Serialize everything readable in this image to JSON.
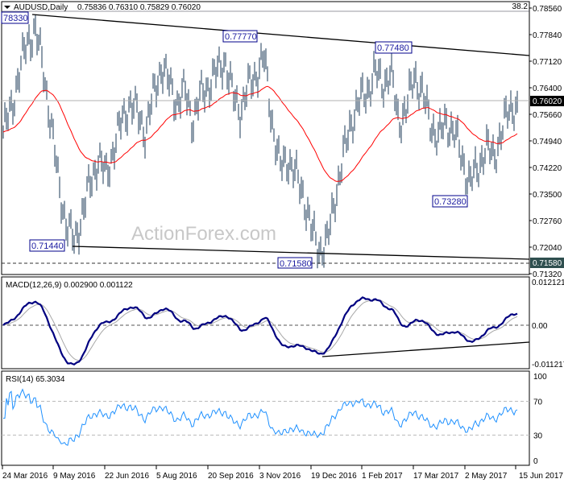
{
  "header": {
    "symbol": "AUDUSD,Daily",
    "ohlc": "0.75836 0.76310 0.75829 0.76020",
    "fib_label": "38.2",
    "watermark": "ActionForex.com"
  },
  "colors": {
    "bars": "#1b3a57",
    "moving_average": "#ff0000",
    "macd_main": "#000080",
    "macd_signal": "#a8a8a8",
    "rsi": "#1e90ff",
    "label_border": "#00008b"
  },
  "chart_data": [
    {
      "type": "bar",
      "subtype": "ohlc",
      "title": "AUDUSD,Daily",
      "x_range": [
        "24 Mar 2016",
        "15 Jun 2017"
      ],
      "ylim": [
        0.7132,
        0.7856
      ],
      "current_price": "0.76020",
      "weekly_closes_approx": [
        0.752,
        0.758,
        0.768,
        0.776,
        0.78,
        0.77,
        0.755,
        0.738,
        0.727,
        0.722,
        0.73,
        0.738,
        0.745,
        0.74,
        0.748,
        0.755,
        0.76,
        0.757,
        0.752,
        0.762,
        0.77,
        0.765,
        0.76,
        0.763,
        0.755,
        0.762,
        0.765,
        0.768,
        0.772,
        0.762,
        0.758,
        0.764,
        0.768,
        0.772,
        0.755,
        0.742,
        0.745,
        0.74,
        0.735,
        0.725,
        0.72,
        0.722,
        0.735,
        0.745,
        0.755,
        0.76,
        0.763,
        0.768,
        0.765,
        0.768,
        0.755,
        0.758,
        0.768,
        0.762,
        0.755,
        0.75,
        0.755,
        0.752,
        0.745,
        0.738,
        0.742,
        0.748,
        0.745,
        0.752,
        0.758,
        0.7602
      ],
      "annotations": [
        "78330",
        "0.77770",
        "0.77480",
        "0.73280",
        "0.71440",
        "0.71580"
      ],
      "y_ticks": [
        "0.78560",
        "0.77840",
        "0.77120",
        "0.76400",
        "0.75660",
        "0.74940",
        "0.74220",
        "0.73500",
        "0.72760",
        "0.72040",
        "0.71320"
      ],
      "highlighted_ticks": [
        "0.76020",
        "0.71580"
      ],
      "x_ticks": [
        "24 Mar 2016",
        "9 May 2016",
        "22 Jun 2016",
        "5 Aug 2016",
        "20 Sep 2016",
        "3 Nov 2016",
        "19 Dec 2016",
        "1 Feb 2017",
        "17 Mar 2017",
        "2 May 2017",
        "15 Jun 2017"
      ]
    },
    {
      "type": "line",
      "title": "MACD(12,26,9) 0.002900 0.001122",
      "y_ticks": [
        "0.012121",
        "0.00",
        "-0.011217"
      ],
      "ylim": [
        -0.011217,
        0.012121
      ]
    },
    {
      "type": "line",
      "title": "RSI(14) 65.3034",
      "y_ticks": [
        "100",
        "70",
        "30",
        "0"
      ],
      "levels": [
        70,
        30
      ],
      "ylim": [
        0,
        100
      ]
    }
  ]
}
